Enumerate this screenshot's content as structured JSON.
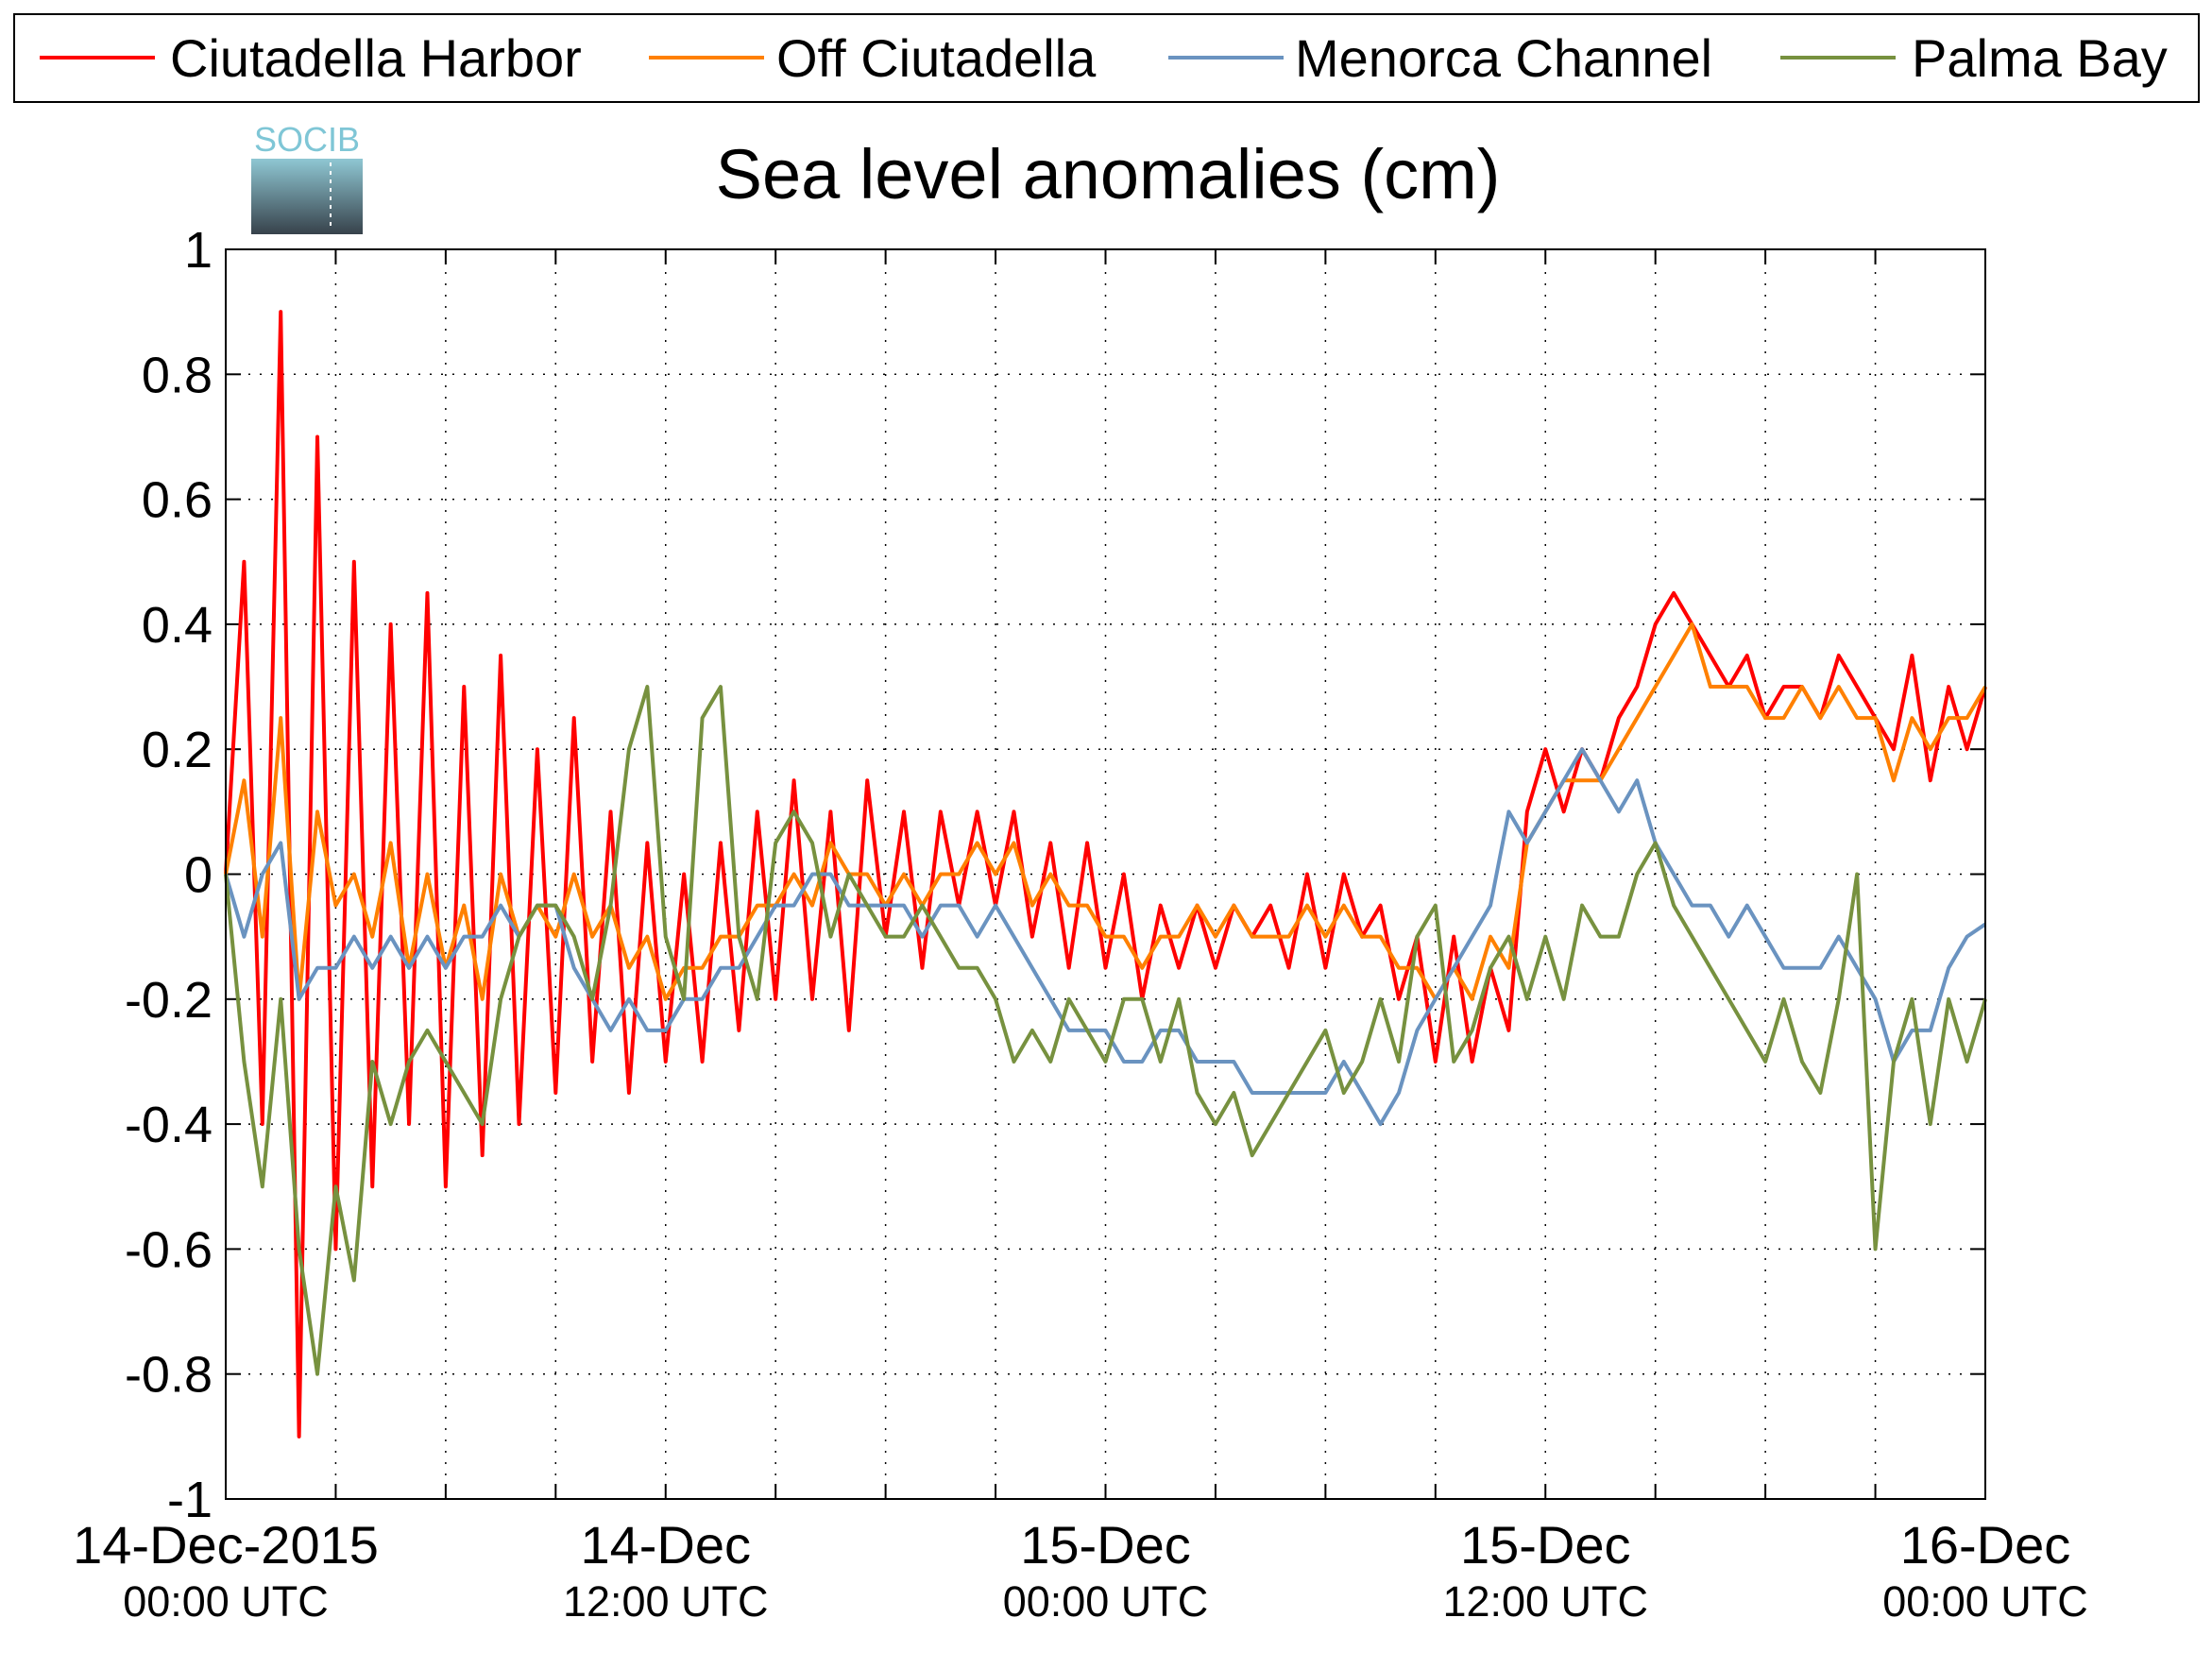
{
  "chart_data": {
    "type": "line",
    "title": "Sea level anomalies (cm)",
    "logo_text": "SOCIB",
    "grid": true,
    "legend": "top",
    "x": [
      0,
      0.5,
      1,
      1.5,
      2,
      2.5,
      3,
      3.5,
      4,
      4.5,
      5,
      5.5,
      6,
      6.5,
      7,
      7.5,
      8,
      8.5,
      9,
      9.5,
      10,
      10.5,
      11,
      11.5,
      12,
      12.5,
      13,
      13.5,
      14,
      14.5,
      15,
      15.5,
      16,
      16.5,
      17,
      17.5,
      18,
      18.5,
      19,
      19.5,
      20,
      20.5,
      21,
      21.5,
      22,
      22.5,
      23,
      23.5,
      24,
      24.5,
      25,
      25.5,
      26,
      26.5,
      27,
      27.5,
      28,
      28.5,
      29,
      29.5,
      30,
      30.5,
      31,
      31.5,
      32,
      32.5,
      33,
      33.5,
      34,
      34.5,
      35,
      35.5,
      36,
      36.5,
      37,
      37.5,
      38,
      38.5,
      39,
      39.5,
      40,
      40.5,
      41,
      41.5,
      42,
      42.5,
      43,
      43.5,
      44,
      44.5,
      45,
      45.5,
      46,
      46.5,
      47,
      47.5,
      48
    ],
    "xlim": [
      0,
      48
    ],
    "xticks": [
      {
        "value": 0,
        "label": "14-Dec-2015\n00:00 UTC"
      },
      {
        "value": 3,
        "label": null
      },
      {
        "value": 6,
        "label": null
      },
      {
        "value": 9,
        "label": null
      },
      {
        "value": 12,
        "label": "14-Dec\n12:00 UTC"
      },
      {
        "value": 15,
        "label": null
      },
      {
        "value": 18,
        "label": null
      },
      {
        "value": 21,
        "label": null
      },
      {
        "value": 24,
        "label": "15-Dec\n00:00 UTC"
      },
      {
        "value": 27,
        "label": null
      },
      {
        "value": 30,
        "label": null
      },
      {
        "value": 33,
        "label": null
      },
      {
        "value": 36,
        "label": "15-Dec\n12:00 UTC"
      },
      {
        "value": 39,
        "label": null
      },
      {
        "value": 42,
        "label": null
      },
      {
        "value": 45,
        "label": null
      },
      {
        "value": 48,
        "label": "16-Dec\n00:00 UTC"
      }
    ],
    "ylim": [
      -1,
      1
    ],
    "yticks": [
      -1,
      -0.8,
      -0.6,
      -0.4,
      -0.2,
      0,
      0.2,
      0.4,
      0.6,
      0.8,
      1
    ],
    "series": [
      {
        "name": "Ciutadella Harbor",
        "color": "#ff0000",
        "values": [
          0.0,
          0.5,
          -0.4,
          0.9,
          -0.9,
          0.7,
          -0.6,
          0.5,
          -0.5,
          0.4,
          -0.4,
          0.45,
          -0.5,
          0.3,
          -0.45,
          0.35,
          -0.4,
          0.2,
          -0.35,
          0.25,
          -0.3,
          0.1,
          -0.35,
          0.05,
          -0.3,
          0.0,
          -0.3,
          0.05,
          -0.25,
          0.1,
          -0.2,
          0.15,
          -0.2,
          0.1,
          -0.25,
          0.15,
          -0.1,
          0.1,
          -0.15,
          0.1,
          -0.05,
          0.1,
          -0.05,
          0.1,
          -0.1,
          0.05,
          -0.15,
          0.05,
          -0.15,
          0.0,
          -0.2,
          -0.05,
          -0.15,
          -0.05,
          -0.15,
          -0.05,
          -0.1,
          -0.05,
          -0.15,
          0.0,
          -0.15,
          0.0,
          -0.1,
          -0.05,
          -0.2,
          -0.1,
          -0.3,
          -0.1,
          -0.3,
          -0.15,
          -0.25,
          0.1,
          0.2,
          0.1,
          0.2,
          0.15,
          0.25,
          0.3,
          0.4,
          0.45,
          0.4,
          0.35,
          0.3,
          0.35,
          0.25,
          0.3,
          0.3,
          0.25,
          0.35,
          0.3,
          0.25,
          0.2,
          0.35,
          0.15,
          0.3,
          0.2,
          0.3
        ]
      },
      {
        "name": "Off Ciutadella",
        "color": "#ff8000",
        "values": [
          0.0,
          0.15,
          -0.1,
          0.25,
          -0.2,
          0.1,
          -0.05,
          0.0,
          -0.1,
          0.05,
          -0.15,
          0.0,
          -0.15,
          -0.05,
          -0.2,
          0.0,
          -0.1,
          -0.05,
          -0.1,
          0.0,
          -0.1,
          -0.05,
          -0.15,
          -0.1,
          -0.2,
          -0.15,
          -0.15,
          -0.1,
          -0.1,
          -0.05,
          -0.05,
          0.0,
          -0.05,
          0.05,
          0.0,
          0.0,
          -0.05,
          0.0,
          -0.05,
          0.0,
          0.0,
          0.05,
          0.0,
          0.05,
          -0.05,
          0.0,
          -0.05,
          -0.05,
          -0.1,
          -0.1,
          -0.15,
          -0.1,
          -0.1,
          -0.05,
          -0.1,
          -0.05,
          -0.1,
          -0.1,
          -0.1,
          -0.05,
          -0.1,
          -0.05,
          -0.1,
          -0.1,
          -0.15,
          -0.15,
          -0.2,
          -0.15,
          -0.2,
          -0.1,
          -0.15,
          0.05,
          0.1,
          0.15,
          0.15,
          0.15,
          0.2,
          0.25,
          0.3,
          0.35,
          0.4,
          0.3,
          0.3,
          0.3,
          0.25,
          0.25,
          0.3,
          0.25,
          0.3,
          0.25,
          0.25,
          0.15,
          0.25,
          0.2,
          0.25,
          0.25,
          0.3
        ]
      },
      {
        "name": "Menorca Channel",
        "color": "#6a93c0",
        "values": [
          0.0,
          -0.1,
          0.0,
          0.05,
          -0.2,
          -0.15,
          -0.15,
          -0.1,
          -0.15,
          -0.1,
          -0.15,
          -0.1,
          -0.15,
          -0.1,
          -0.1,
          -0.05,
          -0.1,
          -0.05,
          -0.05,
          -0.15,
          -0.2,
          -0.25,
          -0.2,
          -0.25,
          -0.25,
          -0.2,
          -0.2,
          -0.15,
          -0.15,
          -0.1,
          -0.05,
          -0.05,
          0.0,
          0.0,
          -0.05,
          -0.05,
          -0.05,
          -0.05,
          -0.1,
          -0.05,
          -0.05,
          -0.1,
          -0.05,
          -0.1,
          -0.15,
          -0.2,
          -0.25,
          -0.25,
          -0.25,
          -0.3,
          -0.3,
          -0.25,
          -0.25,
          -0.3,
          -0.3,
          -0.3,
          -0.35,
          -0.35,
          -0.35,
          -0.35,
          -0.35,
          -0.3,
          -0.35,
          -0.4,
          -0.35,
          -0.25,
          -0.2,
          -0.15,
          -0.1,
          -0.05,
          0.1,
          0.05,
          0.1,
          0.15,
          0.2,
          0.15,
          0.1,
          0.15,
          0.05,
          0.0,
          -0.05,
          -0.05,
          -0.1,
          -0.05,
          -0.1,
          -0.15,
          -0.15,
          -0.15,
          -0.1,
          -0.15,
          -0.2,
          -0.3,
          -0.25,
          -0.25,
          -0.15,
          -0.1,
          -0.08
        ]
      },
      {
        "name": "Palma Bay",
        "color": "#77913f",
        "values": [
          0.0,
          -0.3,
          -0.5,
          -0.2,
          -0.6,
          -0.8,
          -0.5,
          -0.65,
          -0.3,
          -0.4,
          -0.3,
          -0.25,
          -0.3,
          -0.35,
          -0.4,
          -0.2,
          -0.1,
          -0.05,
          -0.05,
          -0.1,
          -0.2,
          -0.05,
          0.2,
          0.3,
          -0.1,
          -0.2,
          0.25,
          0.3,
          -0.1,
          -0.2,
          0.05,
          0.1,
          0.05,
          -0.1,
          0.0,
          -0.05,
          -0.1,
          -0.1,
          -0.05,
          -0.1,
          -0.15,
          -0.15,
          -0.2,
          -0.3,
          -0.25,
          -0.3,
          -0.2,
          -0.25,
          -0.3,
          -0.2,
          -0.2,
          -0.3,
          -0.2,
          -0.35,
          -0.4,
          -0.35,
          -0.45,
          -0.4,
          -0.35,
          -0.3,
          -0.25,
          -0.35,
          -0.3,
          -0.2,
          -0.3,
          -0.1,
          -0.05,
          -0.3,
          -0.25,
          -0.15,
          -0.1,
          -0.2,
          -0.1,
          -0.2,
          -0.05,
          -0.1,
          -0.1,
          0.0,
          0.05,
          -0.05,
          -0.1,
          -0.15,
          -0.2,
          -0.25,
          -0.3,
          -0.2,
          -0.3,
          -0.35,
          -0.2,
          0.0,
          -0.6,
          -0.3,
          -0.2,
          -0.4,
          -0.2,
          -0.3,
          -0.2
        ]
      }
    ]
  }
}
